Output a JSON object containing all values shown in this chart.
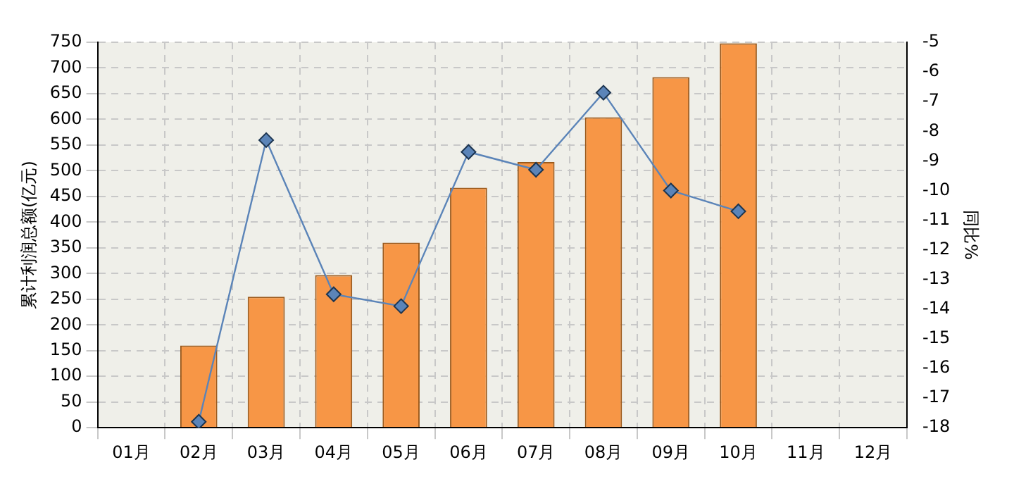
{
  "chart_data": {
    "type": "bar",
    "ylabel": "累计利润总额(亿元)",
    "y2label": "同比%",
    "categories": [
      "01月",
      "02月",
      "03月",
      "04月",
      "05月",
      "06月",
      "07月",
      "08月",
      "09月",
      "10月",
      "11月",
      "12月"
    ],
    "series": [
      {
        "color": "#f79646",
        "values": [
          null,
          160,
          255,
          297,
          360,
          467,
          517,
          604,
          682,
          748,
          null,
          null
        ]
      },
      {
        "type": "line",
        "axis": "y2",
        "color": "#5b84b8",
        "marker": "diamond",
        "values": [
          null,
          -17.8,
          -8.3,
          -13.5,
          -13.9,
          -8.7,
          -9.3,
          -6.7,
          -10.0,
          -10.7,
          null,
          null
        ]
      }
    ],
    "ylim": [
      0,
      750
    ],
    "yticks": [
      0,
      50,
      100,
      150,
      200,
      250,
      300,
      350,
      400,
      450,
      500,
      550,
      600,
      650,
      700,
      750
    ],
    "y2lim": [
      -18,
      -5
    ],
    "y2ticks": [
      -18,
      -17,
      -16,
      -15,
      -14,
      -13,
      -12,
      -11,
      -10,
      -9,
      -8,
      -7,
      -6,
      -5
    ],
    "grid": true,
    "legend": false
  }
}
